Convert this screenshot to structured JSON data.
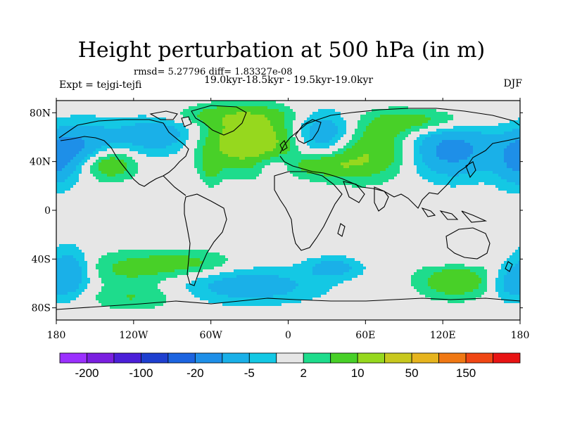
{
  "header": {
    "title": "Height perturbation at 500 hPa (in m)",
    "stats": "rmsd= 5.27796 diff= 1.83327e-08",
    "period": "19.0kyr-18.5kyr - 19.5kyr-19.0kyr",
    "experiment": "Expt = tejgi-tejfi",
    "season": "DJF"
  },
  "chart_data": {
    "type": "heatmap",
    "title": "Height perturbation at 500 hPa (in m)",
    "projection": "cylindrical equidistant",
    "xlim": [
      -180,
      180
    ],
    "ylim": [
      -90,
      90
    ],
    "x_ticks": [
      {
        "value": -180,
        "label": "180"
      },
      {
        "value": -120,
        "label": "120W"
      },
      {
        "value": -60,
        "label": "60W"
      },
      {
        "value": 0,
        "label": "0"
      },
      {
        "value": 60,
        "label": "60E"
      },
      {
        "value": 120,
        "label": "120E"
      },
      {
        "value": 180,
        "label": "180"
      }
    ],
    "y_ticks": [
      {
        "value": 80,
        "label": "80N"
      },
      {
        "value": 40,
        "label": "40N"
      },
      {
        "value": 0,
        "label": "0"
      },
      {
        "value": -40,
        "label": "40S"
      },
      {
        "value": -80,
        "label": "80S"
      }
    ],
    "levels": [
      -200,
      -150,
      -100,
      -50,
      -20,
      -10,
      -5,
      -2,
      2,
      5,
      10,
      20,
      50,
      100,
      150,
      200
    ],
    "colors": [
      "#9b30ff",
      "#7a1fe0",
      "#4b1fd8",
      "#1e3fcf",
      "#1c64e0",
      "#1e8fe8",
      "#1ab0e8",
      "#14c8e4",
      "#e6e6e6",
      "#1edc8c",
      "#48d028",
      "#96d81e",
      "#c8c81e",
      "#e6b41e",
      "#f07814",
      "#f04614",
      "#e81414"
    ],
    "colorbar_labels": [
      {
        "level": -200,
        "label": "-200"
      },
      {
        "level": -100,
        "label": "-100"
      },
      {
        "level": -20,
        "label": "-20"
      },
      {
        "level": -5,
        "label": "-5"
      },
      {
        "level": 2,
        "label": "2"
      },
      {
        "level": 10,
        "label": "10"
      },
      {
        "level": 50,
        "label": "50"
      },
      {
        "level": 150,
        "label": "150"
      }
    ],
    "anomalies": [
      {
        "lon": -30,
        "lat": 57,
        "amplitude": 16,
        "sx": 28,
        "sy": 16
      },
      {
        "lon": 55,
        "lat": 50,
        "amplitude": 13,
        "sx": 30,
        "sy": 16
      },
      {
        "lon": 28,
        "lat": 60,
        "amplitude": -16,
        "sx": 20,
        "sy": 14
      },
      {
        "lon": 125,
        "lat": 50,
        "amplitude": -13,
        "sx": 25,
        "sy": 16
      },
      {
        "lon": -160,
        "lat": 52,
        "amplitude": -10,
        "sx": 18,
        "sy": 14
      },
      {
        "lon": -100,
        "lat": 62,
        "amplitude": -9,
        "sx": 25,
        "sy": 12
      },
      {
        "lon": -140,
        "lat": 38,
        "amplitude": 11,
        "sx": 15,
        "sy": 9
      },
      {
        "lon": 105,
        "lat": 73,
        "amplitude": 8,
        "sx": 28,
        "sy": 7
      },
      {
        "lon": 178,
        "lat": 40,
        "amplitude": -9,
        "sx": 12,
        "sy": 15
      },
      {
        "lon": -60,
        "lat": 35,
        "amplitude": 5,
        "sx": 5,
        "sy": 10
      },
      {
        "lon": -10,
        "lat": 38,
        "amplitude": -6,
        "sx": 12,
        "sy": 7
      },
      {
        "lon": 28,
        "lat": 37,
        "amplitude": 6,
        "sx": 20,
        "sy": 6
      },
      {
        "lon": -50,
        "lat": 78,
        "amplitude": 5,
        "sx": 40,
        "sy": 6
      },
      {
        "lon": -170,
        "lat": -52,
        "amplitude": -10,
        "sx": 12,
        "sy": 14
      },
      {
        "lon": -120,
        "lat": -48,
        "amplitude": 6,
        "sx": 30,
        "sy": 10
      },
      {
        "lon": -75,
        "lat": -43,
        "amplitude": 5,
        "sx": 25,
        "sy": 7
      },
      {
        "lon": -30,
        "lat": -62,
        "amplitude": -8,
        "sx": 38,
        "sy": 10
      },
      {
        "lon": -120,
        "lat": -72,
        "amplitude": 5,
        "sx": 25,
        "sy": 7
      },
      {
        "lon": 35,
        "lat": -47,
        "amplitude": -7,
        "sx": 15,
        "sy": 6
      },
      {
        "lon": 130,
        "lat": -58,
        "amplitude": 9,
        "sx": 20,
        "sy": 10
      },
      {
        "lon": 130,
        "lat": -40,
        "amplitude": -3,
        "sx": 15,
        "sy": 5
      },
      {
        "lon": 170,
        "lat": -60,
        "amplitude": -6,
        "sx": 10,
        "sy": 10
      }
    ]
  }
}
